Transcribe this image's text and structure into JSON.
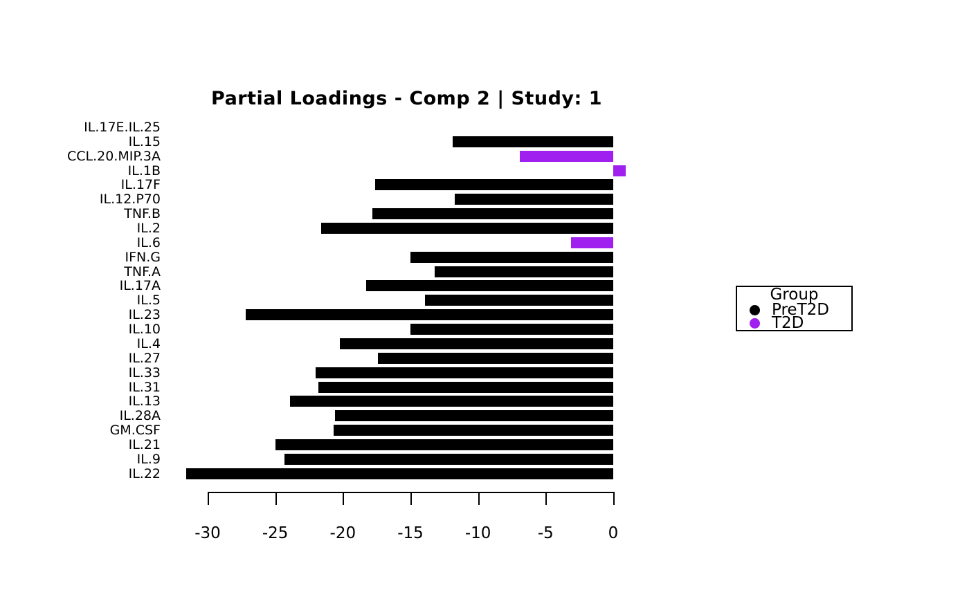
{
  "chart_data": {
    "type": "bar",
    "orientation": "horizontal",
    "title": "Partial Loadings - Comp 2 | Study: 1",
    "categories": [
      "IL.17E.IL.25",
      "IL.15",
      "CCL.20.MIP.3A",
      "IL.1B",
      "IL.17F",
      "IL.12.P70",
      "TNF.B",
      "IL.2",
      "IL.6",
      "IFN.G",
      "TNF.A",
      "IL.17A",
      "IL.5",
      "IL.23",
      "IL.10",
      "IL.4",
      "IL.27",
      "IL.33",
      "IL.31",
      "IL.13",
      "IL.28A",
      "GM.CSF",
      "IL.21",
      "IL.9",
      "IL.22"
    ],
    "values": [
      0,
      -11.9,
      -6.9,
      0.9,
      -17.6,
      -11.7,
      -17.8,
      -21.6,
      -3.1,
      -15.0,
      -13.2,
      -18.3,
      -13.9,
      -27.2,
      -15.0,
      -20.2,
      -17.4,
      -22.0,
      -21.8,
      -23.9,
      -20.6,
      -20.7,
      -25.0,
      -24.3,
      -31.6
    ],
    "groups": [
      "PreT2D",
      "PreT2D",
      "T2D",
      "T2D",
      "PreT2D",
      "PreT2D",
      "PreT2D",
      "PreT2D",
      "T2D",
      "PreT2D",
      "PreT2D",
      "PreT2D",
      "PreT2D",
      "PreT2D",
      "PreT2D",
      "PreT2D",
      "PreT2D",
      "PreT2D",
      "PreT2D",
      "PreT2D",
      "PreT2D",
      "PreT2D",
      "PreT2D",
      "PreT2D",
      "PreT2D"
    ],
    "group_colors": {
      "PreT2D": "#000000",
      "T2D": "#A020F0"
    },
    "x_ticks": [
      -30,
      -25,
      -20,
      -15,
      -10,
      -5,
      0
    ],
    "x_tick_labels": [
      "-30",
      "-25",
      "-20",
      "-15",
      "-10",
      "-5",
      "0"
    ],
    "xlim": [
      -33,
      2
    ],
    "grid": false,
    "legend": {
      "title": "Group",
      "position": "right",
      "entries": [
        {
          "label": "PreT2D",
          "color": "#000000"
        },
        {
          "label": "T2D",
          "color": "#A020F0"
        }
      ]
    }
  }
}
